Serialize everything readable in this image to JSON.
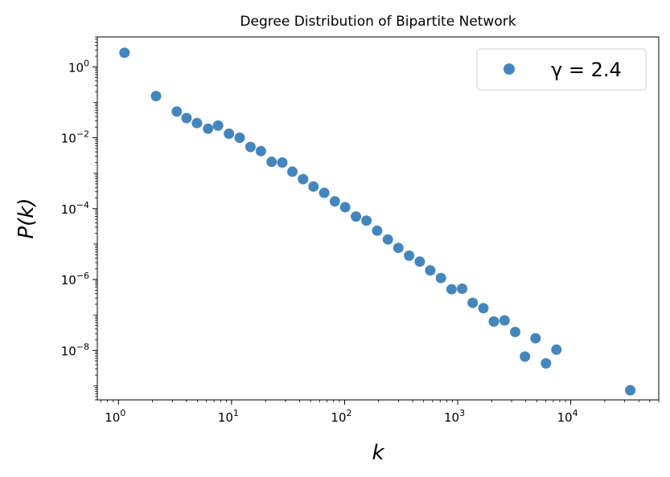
{
  "chart_data": {
    "type": "scatter",
    "title": "Degree Distribution of Bipartite Network",
    "xlabel": "k",
    "ylabel": "P(k)",
    "xscale": "log",
    "yscale": "log",
    "xlim": [
      0.65,
      60000
    ],
    "ylim": [
      4e-10,
      7
    ],
    "x_ticks": [
      {
        "value": 1,
        "base": "10",
        "exp": "0"
      },
      {
        "value": 10,
        "base": "10",
        "exp": "1"
      },
      {
        "value": 100,
        "base": "10",
        "exp": "2"
      },
      {
        "value": 1000,
        "base": "10",
        "exp": "3"
      },
      {
        "value": 10000,
        "base": "10",
        "exp": "4"
      }
    ],
    "y_ticks": [
      {
        "value": 1,
        "base": "10",
        "exp": "0"
      },
      {
        "value": 0.01,
        "base": "10",
        "exp": "−2"
      },
      {
        "value": 0.0001,
        "base": "10",
        "exp": "−4"
      },
      {
        "value": 1e-06,
        "base": "10",
        "exp": "−6"
      },
      {
        "value": 1e-08,
        "base": "10",
        "exp": "−8"
      }
    ],
    "grid": false,
    "legend_position": "top-right",
    "color": "#3a7fb8",
    "series": [
      {
        "name": "γ = 2.4",
        "x": [
          1.13,
          2.15,
          3.28,
          4.0,
          4.95,
          6.2,
          7.6,
          9.5,
          11.8,
          14.7,
          18.2,
          22.6,
          28.1,
          34.5,
          42.9,
          53.1,
          66.0,
          82.0,
          101,
          126,
          156,
          194,
          241,
          299,
          372,
          462,
          572,
          711,
          882,
          1095,
          1358,
          1688,
          2088,
          2598,
          3222,
          3937,
          4881,
          6035,
          7474,
          33600
        ],
        "y": [
          2.5,
          0.15,
          0.055,
          0.036,
          0.026,
          0.018,
          0.022,
          0.013,
          0.01,
          0.0055,
          0.0042,
          0.0021,
          0.002,
          0.0011,
          0.00068,
          0.00042,
          0.00028,
          0.00016,
          0.00011,
          6e-05,
          4.6e-05,
          2.4e-05,
          1.35e-05,
          7.8e-06,
          4.7e-06,
          3.2e-06,
          1.8e-06,
          1.1e-06,
          5.3e-07,
          5.5e-07,
          2.2e-07,
          1.55e-07,
          6.5e-08,
          7e-08,
          3.3e-08,
          6.7e-09,
          2.2e-08,
          4.3e-09,
          1.05e-08,
          7.5e-10
        ]
      }
    ]
  }
}
